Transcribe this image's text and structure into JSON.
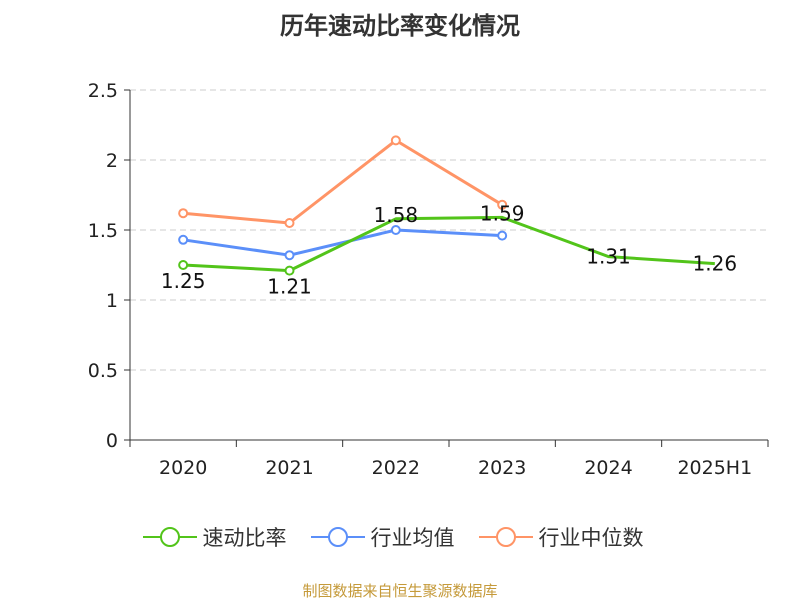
{
  "title": "历年速动比率变化情况",
  "source": "制图数据来自恒生聚源数据库",
  "chart_data": {
    "type": "line",
    "title": "历年速动比率变化情况",
    "categories": [
      "2020",
      "2021",
      "2022",
      "2023",
      "2024",
      "2025H1"
    ],
    "ylim": [
      0,
      2.5
    ],
    "yticks": [
      0,
      0.5,
      1,
      1.5,
      2,
      2.5
    ],
    "ytick_labels": [
      "0",
      "0.5",
      "1",
      "1.5",
      "2",
      "2.5"
    ],
    "grid": true,
    "legend_position": "bottom",
    "series": [
      {
        "name": "速动比率",
        "color": "#52c41a",
        "values": [
          1.25,
          1.21,
          1.58,
          1.59,
          1.31,
          1.26
        ],
        "labels": [
          "1.25",
          "1.21",
          "1.58",
          "1.59",
          "1.31",
          "1.26"
        ],
        "markers": [
          true,
          true,
          false,
          false,
          false,
          false
        ]
      },
      {
        "name": "行业均值",
        "color": "#5b8ff9",
        "values": [
          1.43,
          1.32,
          1.5,
          1.46,
          null,
          null
        ],
        "markers": [
          true,
          true,
          true,
          true,
          false,
          false
        ]
      },
      {
        "name": "行业中位数",
        "color": "#ff9466",
        "values": [
          1.62,
          1.55,
          2.14,
          1.68,
          null,
          null
        ],
        "markers": [
          true,
          true,
          true,
          true,
          false,
          false
        ]
      }
    ]
  }
}
